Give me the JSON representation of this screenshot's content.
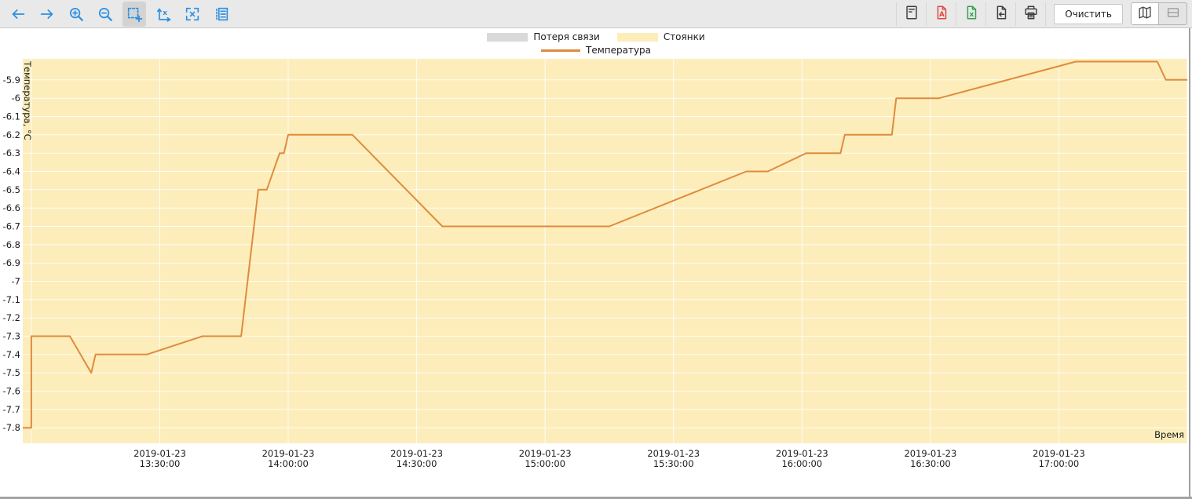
{
  "toolbar": {
    "left_icons": [
      "arrow-left",
      "arrow-right",
      "zoom-in",
      "zoom-out",
      "zoom-selection",
      "reset-axes",
      "fit-screen",
      "legend-list"
    ],
    "active_tool": "zoom-selection",
    "right_icons": [
      "report",
      "export-pdf",
      "export-excel",
      "export-file",
      "print"
    ],
    "clear_label": "Очистить",
    "view_toggle": [
      "map",
      "split"
    ],
    "selected_view": "map",
    "accent_color": "#2e8fe0"
  },
  "legend": {
    "items": [
      {
        "label": "Потеря связи",
        "color": "#d9d9d9",
        "shape": "rect"
      },
      {
        "label": "Стоянки",
        "color": "#fcedbb",
        "shape": "rect"
      },
      {
        "label": "Температура",
        "color": "#e08b3c",
        "shape": "line"
      }
    ]
  },
  "chart_data": {
    "type": "line",
    "title": "",
    "xlabel": "Время",
    "ylabel": "Температура, °C",
    "legend_position": "top-center",
    "grid": true,
    "grid_color": "rgba(255,255,255,0.85)",
    "plot_background": "#fcedbb",
    "x_tick_date": "2019-01-23",
    "x_ticks": [
      "13:30:00",
      "14:00:00",
      "14:30:00",
      "15:00:00",
      "15:30:00",
      "16:00:00",
      "16:30:00",
      "17:00:00"
    ],
    "x_grid": [
      "13:00",
      "13:30",
      "14:00",
      "14:30",
      "15:00",
      "15:30",
      "16:00",
      "16:30",
      "17:00",
      "17:30"
    ],
    "xlim": [
      "12:58",
      "17:30"
    ],
    "y_tick_labels": [
      "-5.9",
      "-6",
      "-6.1",
      "-6.2",
      "-6.3",
      "-6.4",
      "-6.5",
      "-6.6",
      "-6.7",
      "-6.8",
      "-6.9",
      "-7",
      "-7.1",
      "-7.2",
      "-7.3",
      "-7.4",
      "-7.5",
      "-7.6",
      "-7.7",
      "-7.8"
    ],
    "ylim": [
      -7.885,
      -5.785
    ],
    "zones": [
      {
        "name": "Стоянки",
        "color": "#fcedbb",
        "from": "12:58",
        "to": "17:30"
      }
    ],
    "series": [
      {
        "name": "Температура",
        "color": "#e08b3c",
        "points": [
          [
            "12:58",
            -7.8
          ],
          [
            "13:00",
            -7.8
          ],
          [
            "13:00",
            -7.3
          ],
          [
            "13:09",
            -7.3
          ],
          [
            "13:14",
            -7.5
          ],
          [
            "13:15",
            -7.4
          ],
          [
            "13:27",
            -7.4
          ],
          [
            "13:40",
            -7.3
          ],
          [
            "13:49",
            -7.3
          ],
          [
            "13:53",
            -6.5
          ],
          [
            "13:55",
            -6.5
          ],
          [
            "13:58",
            -6.3
          ],
          [
            "13:59",
            -6.3
          ],
          [
            "14:00",
            -6.2
          ],
          [
            "14:15",
            -6.2
          ],
          [
            "14:36",
            -6.7
          ],
          [
            "15:15",
            -6.7
          ],
          [
            "15:47",
            -6.4
          ],
          [
            "15:52",
            -6.4
          ],
          [
            "16:01",
            -6.3
          ],
          [
            "16:09",
            -6.3
          ],
          [
            "16:10",
            -6.2
          ],
          [
            "16:21",
            -6.2
          ],
          [
            "16:22",
            -6.0
          ],
          [
            "16:32",
            -6.0
          ],
          [
            "17:04",
            -5.8
          ],
          [
            "17:23",
            -5.8
          ],
          [
            "17:25",
            -5.9
          ],
          [
            "17:30",
            -5.9
          ]
        ]
      }
    ]
  }
}
